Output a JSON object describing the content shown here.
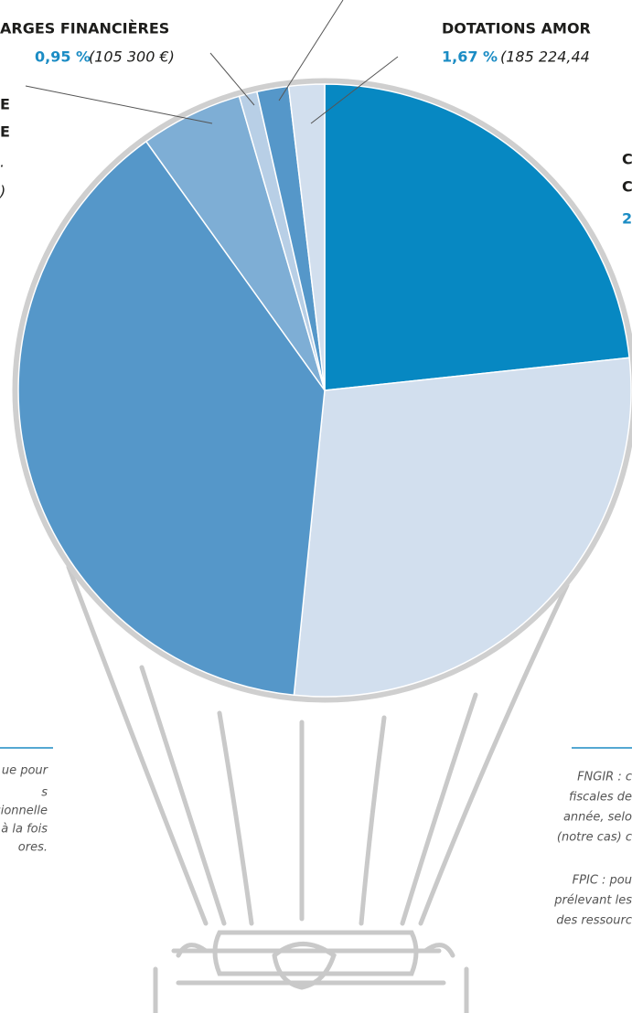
{
  "chart_data": {
    "type": "pie",
    "categories": [
      null,
      null,
      null,
      null,
      "ARGES FINANCIÈRES",
      "DOTATIONS AMOR",
      null
    ],
    "values": [
      23.3,
      28.3,
      38.5,
      5.4,
      0.95,
      1.67,
      1.88
    ],
    "value_labels": [
      null,
      null,
      null,
      null,
      "0,95 %",
      "1,67 %",
      null
    ],
    "amounts": [
      null,
      null,
      null,
      null,
      "(105 300 €)",
      "(185 224,44",
      null
    ],
    "colors": [
      "#0788c2",
      "#d2dfee",
      "#5597c9",
      "#7eaed5",
      "#b8cfe6",
      "#5597c9",
      "#d2dfee"
    ],
    "fragments": [
      "E",
      "E",
      ".",
      ")",
      "C",
      "C",
      "2"
    ],
    "notes_left": [
      "ue pour",
      "s",
      "sionnelle",
      "s à la fois",
      "ores."
    ],
    "notes_right": [
      "FNGIR : c",
      "fiscales de",
      "année, selo",
      "(notre cas) c",
      "FPIC : pou",
      "prélevant les",
      "des ressourc"
    ]
  }
}
